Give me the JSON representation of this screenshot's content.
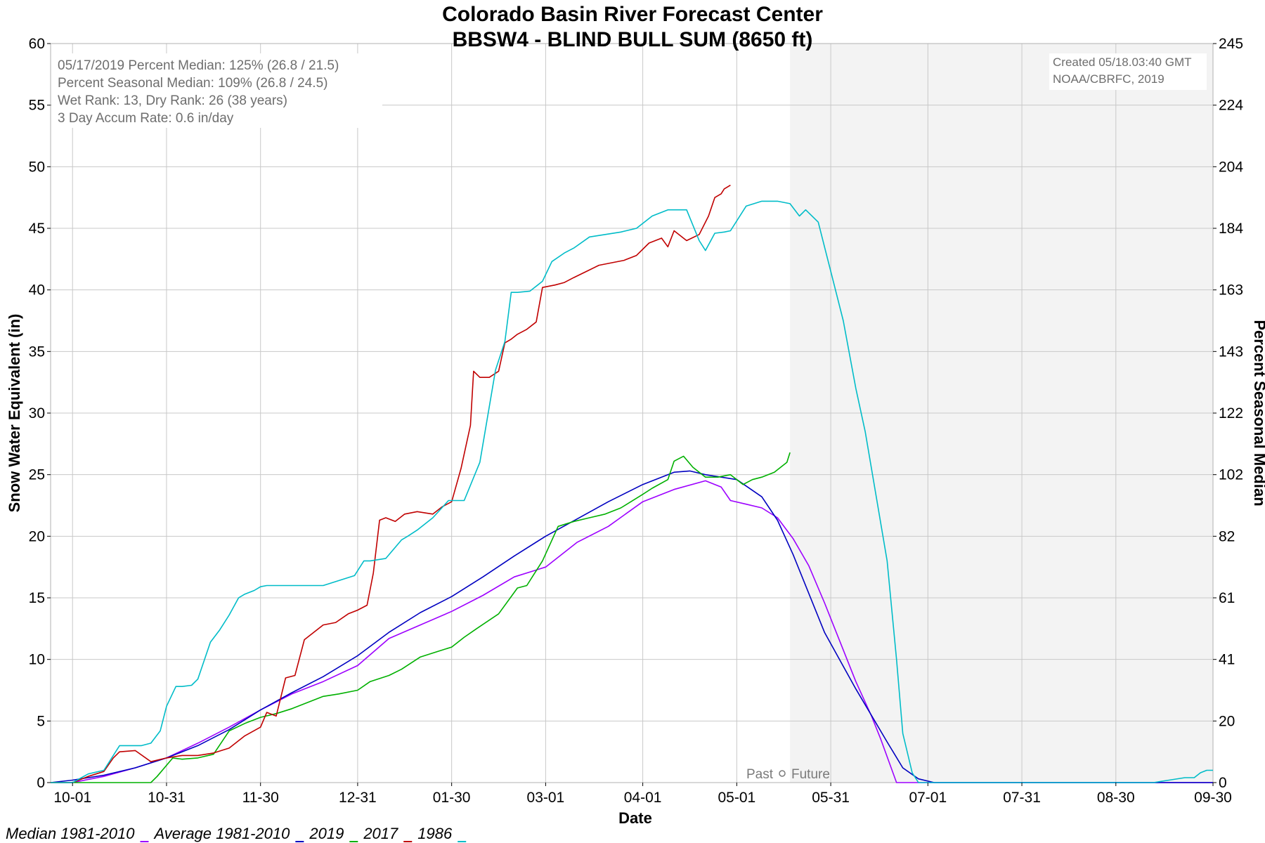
{
  "chart_data": {
    "type": "line",
    "title": "Colorado Basin River Forecast Center",
    "subtitle": "BBSW4 - BLIND BULL SUM (8650 ft)",
    "xlabel": "Date",
    "ylabel": "Snow Water Equivalent (in)",
    "ylabel_right": "Percent Seasonal Median",
    "x_ticks": [
      "10-01",
      "10-31",
      "11-30",
      "12-31",
      "01-30",
      "03-01",
      "04-01",
      "05-01",
      "05-31",
      "07-01",
      "07-31",
      "08-30",
      "09-30"
    ],
    "x_tick_days": [
      0,
      30,
      60,
      91,
      121,
      151,
      182,
      212,
      242,
      273,
      303,
      333,
      364
    ],
    "xlim": [
      -7,
      364
    ],
    "ylim": [
      0,
      60
    ],
    "y_ticks": [
      0,
      5,
      10,
      15,
      20,
      25,
      30,
      35,
      40,
      45,
      50,
      55,
      60
    ],
    "y_ticks_right": [
      "0",
      "20",
      "41",
      "61",
      "82",
      "102",
      "122",
      "143",
      "163",
      "184",
      "204",
      "224",
      "245"
    ],
    "grid": true,
    "future_start_day": 229,
    "info_box": [
      "05/17/2019 Percent Median: 125% (26.8 / 21.5)",
      "Percent Seasonal Median: 109% (26.8 / 24.5)",
      "Wet Rank: 13, Dry Rank: 26  (38 years)",
      "3 Day Accum Rate: 0.6 in/day"
    ],
    "credit": [
      "Created 05/18.03:40 GMT",
      "NOAA/CBRFC, 2019"
    ],
    "past_label": "Past",
    "future_label": "Future",
    "series": [
      {
        "name": "Median 1981-2010",
        "color": "#9d00ff",
        "x": [
          -7,
          0,
          10,
          20,
          30,
          40,
          50,
          60,
          70,
          80,
          91,
          101,
          111,
          121,
          131,
          141,
          151,
          161,
          171,
          182,
          192,
          202,
          207,
          210,
          215,
          220,
          225,
          230,
          235,
          240,
          245,
          250,
          255,
          258,
          263,
          364
        ],
        "y": [
          0,
          0,
          0.5,
          1.2,
          2,
          3.2,
          4.5,
          5.9,
          7.2,
          8.2,
          9.5,
          11.7,
          12.8,
          13.9,
          15.2,
          16.7,
          17.5,
          19.5,
          20.8,
          22.8,
          23.8,
          24.5,
          24.0,
          22.9,
          22.6,
          22.3,
          21.5,
          19.8,
          17.6,
          14.6,
          11.4,
          8.2,
          5.4,
          3.5,
          0,
          0
        ]
      },
      {
        "name": "Average 1981-2010",
        "color": "#0000c0",
        "x": [
          -7,
          0,
          10,
          20,
          30,
          40,
          50,
          60,
          70,
          80,
          91,
          101,
          111,
          121,
          131,
          141,
          151,
          161,
          171,
          182,
          192,
          197,
          202,
          212,
          220,
          225,
          230,
          240,
          250,
          260,
          265,
          270,
          275,
          364
        ],
        "y": [
          0,
          0.2,
          0.6,
          1.2,
          2.0,
          3.0,
          4.3,
          5.9,
          7.3,
          8.6,
          10.3,
          12.2,
          13.8,
          15.1,
          16.7,
          18.4,
          20.0,
          21.4,
          22.8,
          24.2,
          25.2,
          25.3,
          25.0,
          24.6,
          23.2,
          21.3,
          18.5,
          12.2,
          7.6,
          3.3,
          1.2,
          0.3,
          0,
          0
        ]
      },
      {
        "name": "2019",
        "color": "#00b000",
        "x": [
          -7,
          0,
          15,
          25,
          27,
          32,
          35,
          40,
          45,
          50,
          55,
          60,
          65,
          70,
          80,
          85,
          91,
          95,
          101,
          105,
          111,
          116,
          121,
          125,
          129,
          136,
          142,
          145,
          150,
          155,
          160,
          165,
          170,
          175,
          182,
          185,
          190,
          192,
          195,
          198,
          202,
          206,
          210,
          214,
          217,
          220,
          224,
          228,
          229
        ],
        "y": [
          0,
          0,
          0,
          0,
          0.5,
          2.0,
          1.9,
          2.0,
          2.3,
          4.2,
          4.8,
          5.3,
          5.6,
          6.0,
          7.0,
          7.2,
          7.5,
          8.2,
          8.7,
          9.2,
          10.2,
          10.6,
          11.0,
          11.8,
          12.5,
          13.7,
          15.8,
          16.0,
          18.0,
          20.8,
          21.2,
          21.5,
          21.8,
          22.3,
          23.4,
          23.9,
          24.6,
          26.1,
          26.5,
          25.6,
          24.8,
          24.8,
          25.0,
          24.2,
          24.6,
          24.8,
          25.2,
          26.0,
          26.8
        ]
      },
      {
        "name": "2017",
        "color": "#c00000",
        "x": [
          -7,
          0,
          5,
          10,
          13,
          15,
          20,
          25,
          30,
          35,
          40,
          45,
          50,
          55,
          60,
          62,
          65,
          68,
          71,
          74,
          76,
          80,
          84,
          88,
          91,
          94,
          96,
          98,
          100,
          103,
          106,
          110,
          115,
          118,
          121,
          124,
          127,
          128,
          130,
          133,
          136,
          138,
          140,
          142,
          145,
          148,
          150,
          154,
          157,
          160,
          164,
          168,
          172,
          176,
          180,
          184,
          188,
          190,
          192,
          196,
          200,
          203,
          205,
          207,
          208,
          210
        ],
        "y": [
          0,
          0,
          0.5,
          0.9,
          2,
          2.5,
          2.6,
          1.7,
          2,
          2.2,
          2.2,
          2.4,
          2.8,
          3.8,
          4.5,
          5.7,
          5.4,
          8.5,
          8.7,
          11.6,
          12.0,
          12.8,
          13.0,
          13.7,
          14.0,
          14.4,
          17.0,
          21.3,
          21.5,
          21.2,
          21.8,
          22.0,
          21.8,
          22.4,
          22.8,
          25.5,
          29.0,
          33.4,
          32.9,
          32.9,
          33.4,
          35.7,
          36.0,
          36.4,
          36.8,
          37.4,
          40.2,
          40.4,
          40.6,
          41.0,
          41.5,
          42.0,
          42.2,
          42.4,
          42.8,
          43.8,
          44.2,
          43.5,
          44.8,
          44.0,
          44.5,
          46.0,
          47.5,
          47.8,
          48.2,
          48.5
        ]
      },
      {
        "name": "1986",
        "color": "#00bcc8",
        "x": [
          -7,
          0,
          5,
          10,
          15,
          18,
          22,
          25,
          28,
          30,
          33,
          35,
          38,
          40,
          44,
          47,
          50,
          53,
          55,
          58,
          60,
          62,
          65,
          70,
          80,
          90,
          93,
          95,
          100,
          105,
          107,
          110,
          115,
          120,
          125,
          130,
          135,
          138,
          140,
          142,
          146,
          150,
          153,
          157,
          160,
          165,
          170,
          175,
          180,
          185,
          190,
          196,
          200,
          202,
          205,
          208,
          210,
          215,
          220,
          225,
          229,
          232,
          234,
          238,
          240,
          243,
          246,
          250,
          253,
          256,
          260,
          263,
          265,
          268,
          270,
          273,
          300,
          345,
          350,
          355,
          358,
          360,
          362,
          364
        ],
        "y": [
          0,
          0,
          0.7,
          1.0,
          3.0,
          3.0,
          3.0,
          3.2,
          4.2,
          6.2,
          7.8,
          7.8,
          7.9,
          8.4,
          11.4,
          12.4,
          13.6,
          15.0,
          15.3,
          15.6,
          15.9,
          16.0,
          16.0,
          16.0,
          16.0,
          16.8,
          18.0,
          18.0,
          18.2,
          19.7,
          20.0,
          20.5,
          21.5,
          22.9,
          22.9,
          26.0,
          33.5,
          35.8,
          39.8,
          39.8,
          39.9,
          40.7,
          42.3,
          43.0,
          43.4,
          44.3,
          44.5,
          44.7,
          45.0,
          46.0,
          46.5,
          46.5,
          44.0,
          43.2,
          44.6,
          44.7,
          44.8,
          46.8,
          47.2,
          47.2,
          47.0,
          46.0,
          46.5,
          45.5,
          43.5,
          40.5,
          37.5,
          32.0,
          28.5,
          24.0,
          18.0,
          10.0,
          4.0,
          0.8,
          0,
          0,
          0,
          0,
          0.2,
          0.4,
          0.4,
          0.8,
          1.0,
          1.0
        ]
      }
    ]
  }
}
